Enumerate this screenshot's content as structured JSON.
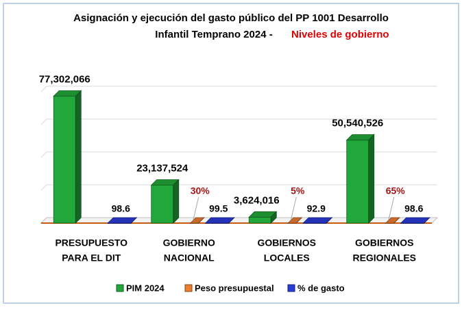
{
  "chart_data": {
    "type": "bar3d",
    "title": [
      "Asignación y ejecución del gasto público del PP 1001 Desarrollo",
      "Infantil Temprano 2024 -"
    ],
    "title_highlight": "Niveles de gobierno",
    "categories": [
      [
        "PRESUPUESTO",
        "PARA EL DIT"
      ],
      [
        "GOBIERNO",
        "NACIONAL"
      ],
      [
        "GOBIERNOS",
        "LOCALES"
      ],
      [
        "GOBIERNOS",
        "REGIONALES"
      ]
    ],
    "series": [
      {
        "name": "PIM 2024",
        "color": "#22a83a",
        "values": [
          77302066,
          23137524,
          3624016,
          50540526
        ],
        "value_labels": [
          "77,302,066",
          "23,137,524",
          "3,624,016",
          "50,540,526"
        ]
      },
      {
        "name": "Peso presupuestal",
        "color": "#ed7d31",
        "values": [
          null,
          30,
          5,
          65
        ],
        "value_labels": [
          null,
          "30%",
          "5%",
          "65%"
        ],
        "label_color": "#a31515"
      },
      {
        "name": "% de gasto",
        "color": "#2a3cd8",
        "values": [
          98.6,
          99.5,
          92.9,
          98.6
        ]
      }
    ],
    "ylim": [
      0,
      80000000
    ],
    "yticks": [
      0,
      20000000,
      40000000,
      60000000,
      80000000
    ],
    "grid": true,
    "legend": "bottom"
  }
}
